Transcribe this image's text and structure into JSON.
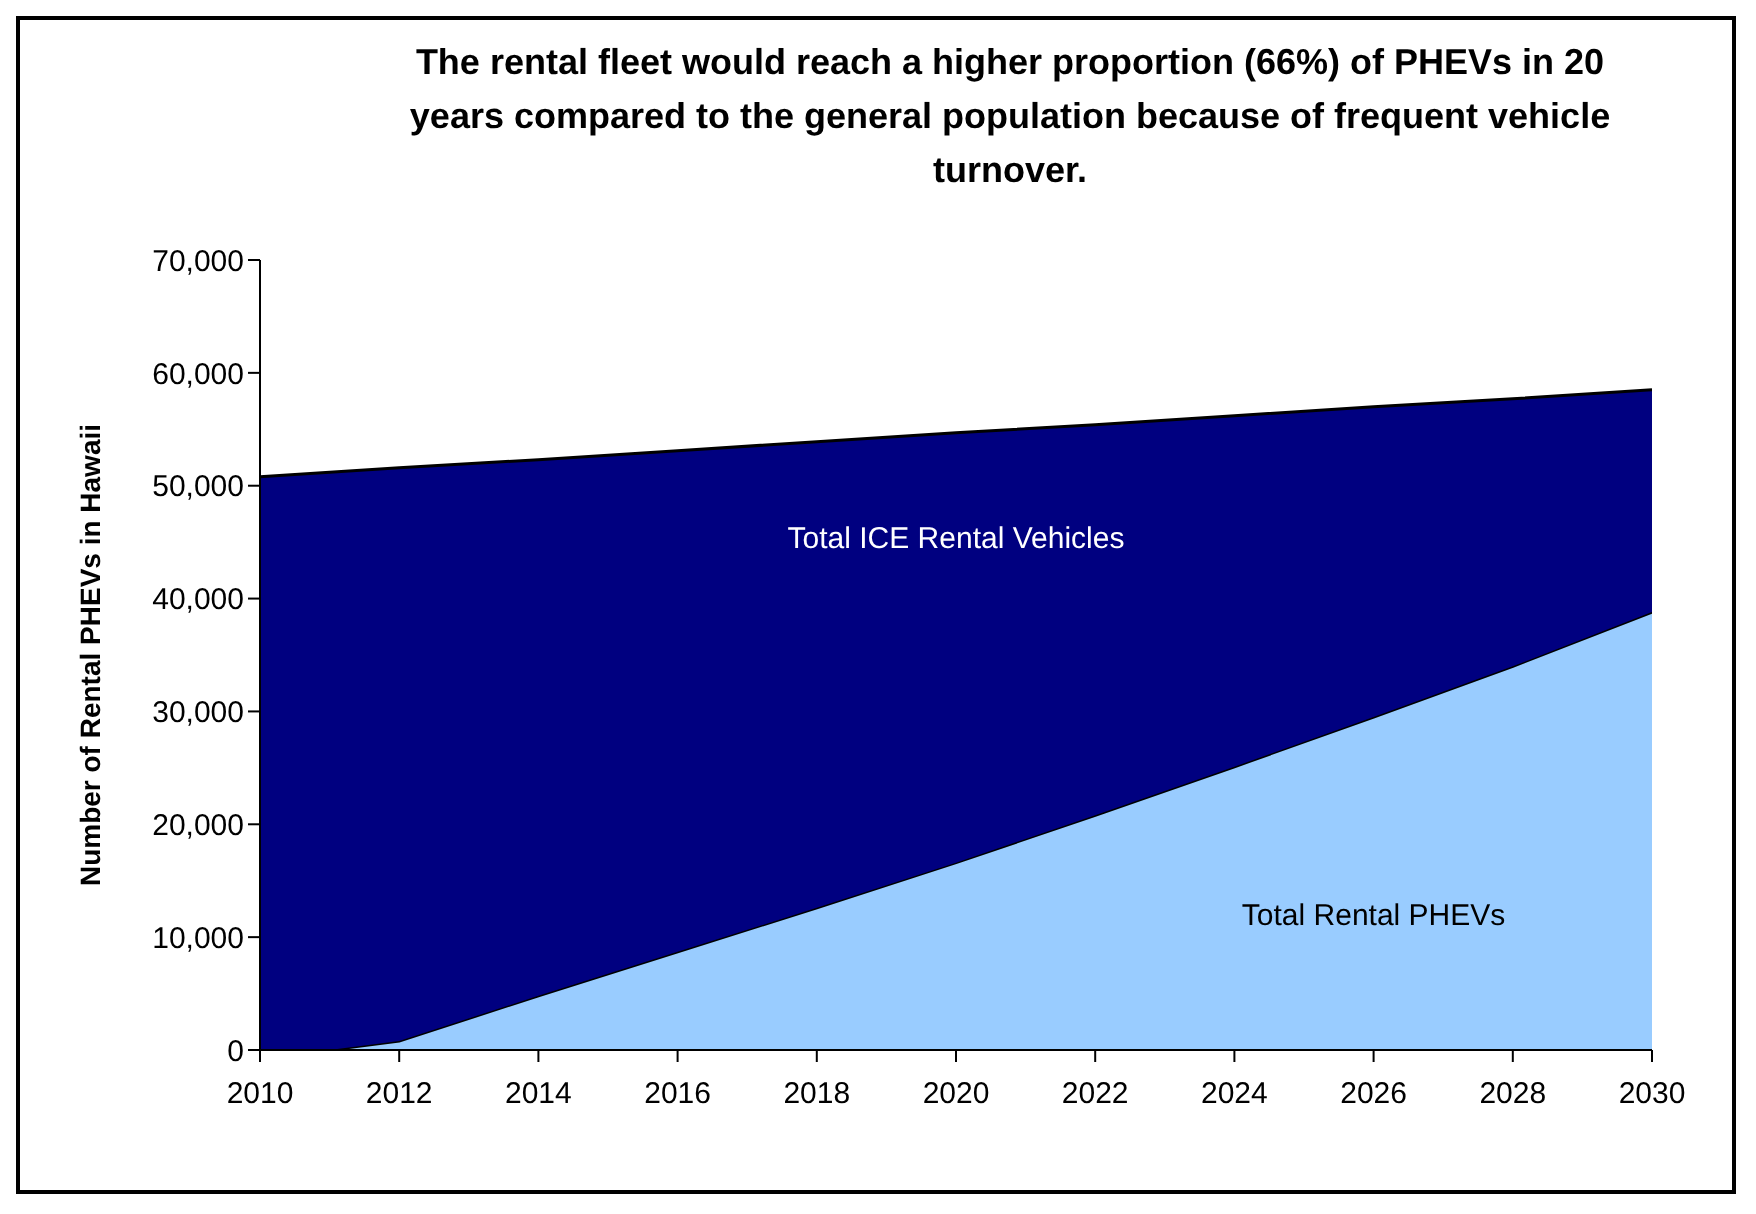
{
  "chart_data": {
    "type": "area",
    "stacked": true,
    "title": "The rental fleet would reach a higher proportion (66%) of PHEVs in 20 years compared to the general population because of frequent vehicle turnover.",
    "ylabel": "Number of Rental PHEVs in Hawaii",
    "x": [
      2010,
      2011,
      2012,
      2014,
      2016,
      2018,
      2020,
      2022,
      2024,
      2026,
      2028,
      2030
    ],
    "series": [
      {
        "name": "Total Rental PHEVs",
        "color": "#99ccff",
        "values": [
          0,
          0,
          800,
          4800,
          8700,
          12600,
          16600,
          20800,
          25100,
          29500,
          34000,
          38800
        ]
      },
      {
        "name": "Total ICE Rental Vehicles",
        "color": "#000080",
        "values": [
          50800,
          51200,
          50800,
          47500,
          44400,
          41300,
          38100,
          34600,
          31100,
          27500,
          23700,
          19700
        ]
      }
    ],
    "xlim": [
      2010,
      2030
    ],
    "xticks": [
      2010,
      2012,
      2014,
      2016,
      2018,
      2020,
      2022,
      2024,
      2026,
      2028,
      2030
    ],
    "ylim": [
      0,
      70000
    ],
    "yticks": [
      0,
      {
        "value": 10000,
        "label": "10,000"
      },
      {
        "value": 20000,
        "label": "20,000"
      },
      {
        "value": 30000,
        "label": "30,000"
      },
      {
        "value": 40000,
        "label": "40,000"
      },
      {
        "value": 50000,
        "label": "50,000"
      },
      {
        "value": 60000,
        "label": "60,000"
      },
      {
        "value": 70000,
        "label": "70,000"
      }
    ],
    "grid": false,
    "legend": false
  }
}
